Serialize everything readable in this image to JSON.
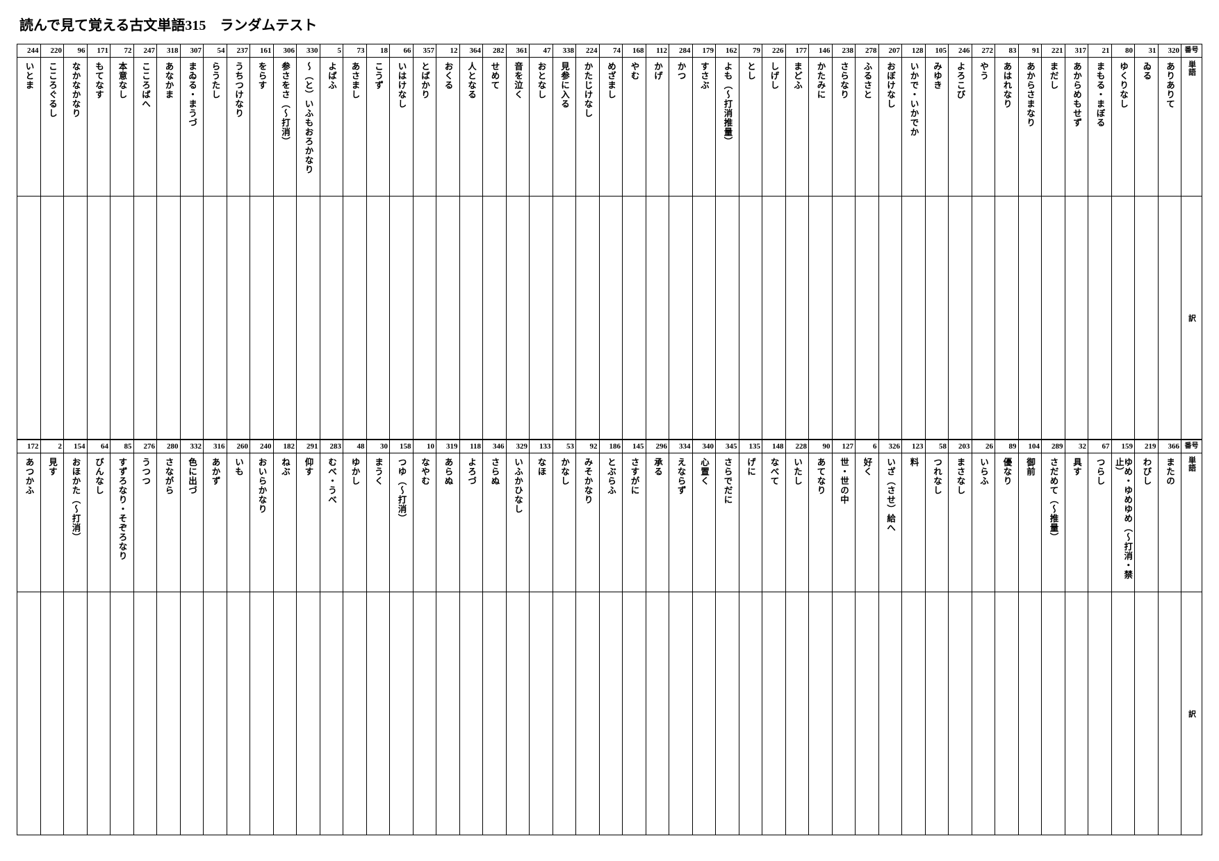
{
  "title": "読んで見て覚える古文単語315　ランダムテスト",
  "headers": {
    "num": "番号",
    "word": "単語",
    "ans": "訳"
  },
  "rows": [
    {
      "cells": [
        {
          "n": "320",
          "w": "ありありて"
        },
        {
          "n": "31",
          "w": "ゐる"
        },
        {
          "n": "80",
          "w": "ゆくりなし"
        },
        {
          "n": "21",
          "w": "まもる・まぼる"
        },
        {
          "n": "317",
          "w": "あからめもせず"
        },
        {
          "n": "221",
          "w": "まだし"
        },
        {
          "n": "91",
          "w": "あからさまなり"
        },
        {
          "n": "83",
          "w": "あはれなり"
        },
        {
          "n": "272",
          "w": "やう"
        },
        {
          "n": "246",
          "w": "よろこび"
        },
        {
          "n": "105",
          "w": "みゆき"
        },
        {
          "n": "128",
          "w": "いかで・いかでか"
        },
        {
          "n": "207",
          "w": "おぼけなし"
        },
        {
          "n": "278",
          "w": "ふるさと"
        },
        {
          "n": "238",
          "w": "さらなり"
        },
        {
          "n": "146",
          "w": "かたみに"
        },
        {
          "n": "177",
          "w": "まどふ"
        },
        {
          "n": "226",
          "w": "しげし"
        },
        {
          "n": "79",
          "w": "とし"
        },
        {
          "n": "162",
          "w": "よも（〜打消推量）"
        },
        {
          "n": "179",
          "w": "すさぶ"
        },
        {
          "n": "284",
          "w": "かつ"
        },
        {
          "n": "112",
          "w": "かげ"
        },
        {
          "n": "168",
          "w": "やむ"
        },
        {
          "n": "74",
          "w": "めざまし"
        },
        {
          "n": "224",
          "w": "かたじけなし"
        },
        {
          "n": "338",
          "w": "見参に入る"
        },
        {
          "n": "47",
          "w": "おとなし"
        },
        {
          "n": "361",
          "w": "音を泣く"
        },
        {
          "n": "282",
          "w": "せめて"
        },
        {
          "n": "364",
          "w": "人となる"
        },
        {
          "n": "12",
          "w": "おくる"
        },
        {
          "n": "357",
          "w": "とばかり"
        },
        {
          "n": "66",
          "w": "いはけなし"
        },
        {
          "n": "18",
          "w": "こうず"
        },
        {
          "n": "73",
          "w": "あさまし"
        },
        {
          "n": "5",
          "w": "よばふ"
        },
        {
          "n": "330",
          "w": "〜（と）いふもおろかなり"
        },
        {
          "n": "306",
          "w": "参さをさ（〜打消）"
        },
        {
          "n": "161",
          "w": "をらす"
        },
        {
          "n": "237",
          "w": "うちつけなり"
        },
        {
          "n": "54",
          "w": "らうたし"
        },
        {
          "n": "307",
          "w": "まゐる・まうづ"
        },
        {
          "n": "318",
          "w": "あなかま"
        },
        {
          "n": "247",
          "w": "こころばへ"
        },
        {
          "n": "72",
          "w": "本意なし"
        },
        {
          "n": "171",
          "w": "もてなす"
        },
        {
          "n": "96",
          "w": "なかなかなり"
        },
        {
          "n": "220",
          "w": "こころぐるし"
        },
        {
          "n": "244",
          "w": "いとま"
        }
      ]
    },
    {
      "cells": [
        {
          "n": "366",
          "w": "またの"
        },
        {
          "n": "219",
          "w": "わびし"
        },
        {
          "n": "159",
          "w": "ゆめ・ゆめゆめ（〜打消・禁止）"
        },
        {
          "n": "67",
          "w": "つらし"
        },
        {
          "n": "32",
          "w": "具す"
        },
        {
          "n": "289",
          "w": "さだめて（〜推量）"
        },
        {
          "n": "104",
          "w": "御前"
        },
        {
          "n": "89",
          "w": "優なり"
        },
        {
          "n": "26",
          "w": "いらふ"
        },
        {
          "n": "203",
          "w": "まさなし"
        },
        {
          "n": "58",
          "w": "つれなし"
        },
        {
          "n": "123",
          "w": "料"
        },
        {
          "n": "326",
          "w": "いざ（させ）給へ"
        },
        {
          "n": "6",
          "w": "好く"
        },
        {
          "n": "127",
          "w": "世・世の中"
        },
        {
          "n": "90",
          "w": "あてなり"
        },
        {
          "n": "228",
          "w": "いたし"
        },
        {
          "n": "148",
          "w": "なべて"
        },
        {
          "n": "135",
          "w": "げに"
        },
        {
          "n": "345",
          "w": "さらでだに"
        },
        {
          "n": "340",
          "w": "心置く"
        },
        {
          "n": "334",
          "w": "えならず"
        },
        {
          "n": "296",
          "w": "承る"
        },
        {
          "n": "145",
          "w": "さすがに"
        },
        {
          "n": "186",
          "w": "とぶらふ"
        },
        {
          "n": "92",
          "w": "みそかなり"
        },
        {
          "n": "53",
          "w": "かなし"
        },
        {
          "n": "133",
          "w": "なほ"
        },
        {
          "n": "329",
          "w": "いふかひなし"
        },
        {
          "n": "346",
          "w": "さらぬ"
        },
        {
          "n": "118",
          "w": "よろづ"
        },
        {
          "n": "319",
          "w": "あらぬ"
        },
        {
          "n": "10",
          "w": "なやむ"
        },
        {
          "n": "158",
          "w": "つゆ（〜打消）"
        },
        {
          "n": "30",
          "w": "まうく"
        },
        {
          "n": "48",
          "w": "ゆかし"
        },
        {
          "n": "283",
          "w": "むべ・うべ"
        },
        {
          "n": "291",
          "w": "仰す"
        },
        {
          "n": "182",
          "w": "ねぶ"
        },
        {
          "n": "240",
          "w": "おいらかなり"
        },
        {
          "n": "260",
          "w": "いも"
        },
        {
          "n": "316",
          "w": "あかず"
        },
        {
          "n": "332",
          "w": "色に出づ"
        },
        {
          "n": "280",
          "w": "さながら"
        },
        {
          "n": "276",
          "w": "うつつ"
        },
        {
          "n": "85",
          "w": "すずろなり・そぞろなり"
        },
        {
          "n": "64",
          "w": "びんなし"
        },
        {
          "n": "154",
          "w": "おほかた（〜打消）"
        },
        {
          "n": "2",
          "w": "見す"
        },
        {
          "n": "172",
          "w": "あつかふ"
        }
      ]
    }
  ]
}
